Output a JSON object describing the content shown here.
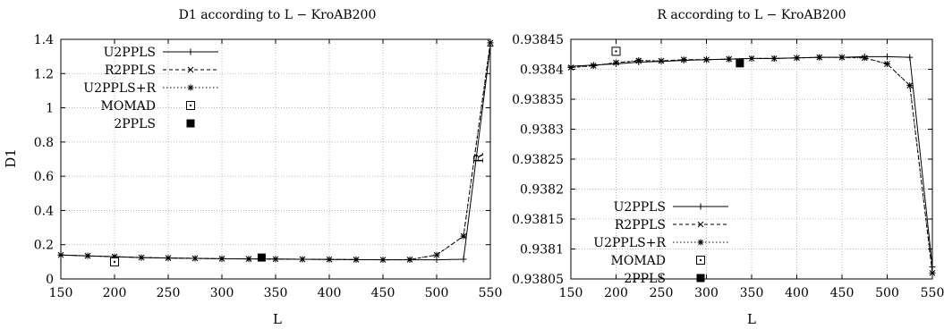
{
  "chart_data": [
    {
      "type": "line",
      "title": "D1 according to L − KroAB200",
      "xlabel": "L",
      "ylabel": "D1",
      "xlim": [
        150,
        550
      ],
      "ylim": [
        0,
        1.4
      ],
      "xticks": [
        "150",
        "200",
        "250",
        "300",
        "350",
        "400",
        "450",
        "500",
        "550"
      ],
      "yticks": [
        "0",
        "0.2",
        "0.4",
        "0.6",
        "0.8",
        "1",
        "1.2",
        "1.4"
      ],
      "grid": true,
      "legend_position": "top-left",
      "series": [
        {
          "name": "U2PPLS",
          "style": "solid-plus",
          "x": [
            150,
            175,
            200,
            225,
            250,
            275,
            300,
            325,
            350,
            375,
            400,
            425,
            450,
            475,
            500,
            525,
            550
          ],
          "y": [
            0.14,
            0.135,
            0.13,
            0.125,
            0.122,
            0.12,
            0.118,
            0.117,
            0.116,
            0.115,
            0.114,
            0.113,
            0.112,
            0.112,
            0.112,
            0.115,
            1.36
          ]
        },
        {
          "name": "R2PPLS",
          "style": "dashed-x",
          "x": [
            150,
            175,
            200,
            225,
            250,
            275,
            300,
            325,
            350,
            375,
            400,
            425,
            450,
            475,
            500,
            525,
            550
          ],
          "y": [
            0.14,
            0.135,
            0.13,
            0.125,
            0.122,
            0.12,
            0.118,
            0.117,
            0.116,
            0.115,
            0.114,
            0.113,
            0.112,
            0.113,
            0.14,
            0.25,
            1.38
          ]
        },
        {
          "name": "U2PPLS+R",
          "style": "dotted-star",
          "x": [
            150,
            175,
            200,
            225,
            250,
            275,
            300,
            325,
            350,
            375,
            400,
            425,
            450,
            475,
            500,
            525,
            550
          ],
          "y": [
            0.14,
            0.135,
            0.13,
            0.125,
            0.122,
            0.12,
            0.118,
            0.117,
            0.116,
            0.115,
            0.114,
            0.113,
            0.112,
            0.113,
            0.14,
            0.25,
            1.38
          ]
        },
        {
          "name": "MOMAD",
          "style": "open-square",
          "x": [
            200
          ],
          "y": [
            0.1
          ]
        },
        {
          "name": "2PPLS",
          "style": "filled-square",
          "x": [
            337
          ],
          "y": [
            0.125
          ]
        }
      ]
    },
    {
      "type": "line",
      "title": "R according to L − KroAB200",
      "xlabel": "L",
      "ylabel": "R",
      "xlim": [
        150,
        550
      ],
      "ylim": [
        0.93805,
        0.93845
      ],
      "xticks": [
        "150",
        "200",
        "250",
        "300",
        "350",
        "400",
        "450",
        "500",
        "550"
      ],
      "yticks": [
        "0.93805",
        "0.9381",
        "0.93815",
        "0.9382",
        "0.93825",
        "0.9383",
        "0.93835",
        "0.9384",
        "0.93845"
      ],
      "grid": true,
      "legend_position": "bottom-left",
      "series": [
        {
          "name": "U2PPLS",
          "style": "solid-plus",
          "x": [
            150,
            175,
            200,
            225,
            250,
            275,
            300,
            325,
            350,
            375,
            400,
            425,
            450,
            475,
            500,
            525,
            550
          ],
          "y": [
            0.938405,
            0.938407,
            0.938409,
            0.938412,
            0.938413,
            0.938415,
            0.938416,
            0.938417,
            0.938418,
            0.938418,
            0.938419,
            0.93842,
            0.93842,
            0.938421,
            0.938421,
            0.93842,
            0.93807
          ]
        },
        {
          "name": "R2PPLS",
          "style": "dashed-x",
          "x": [
            150,
            175,
            200,
            225,
            250,
            275,
            300,
            325,
            350,
            375,
            400,
            425,
            450,
            475,
            500,
            525,
            550
          ],
          "y": [
            0.938403,
            0.938406,
            0.938411,
            0.938414,
            0.938414,
            0.938416,
            0.938416,
            0.938417,
            0.938418,
            0.938418,
            0.938419,
            0.93842,
            0.93842,
            0.938419,
            0.938409,
            0.938373,
            0.93806
          ]
        },
        {
          "name": "U2PPLS+R",
          "style": "dotted-star",
          "x": [
            150,
            175,
            200,
            225,
            250,
            275,
            300,
            325,
            350,
            375,
            400,
            425,
            450,
            475,
            500,
            525,
            550
          ],
          "y": [
            0.938403,
            0.938406,
            0.938411,
            0.938415,
            0.938414,
            0.938416,
            0.938416,
            0.938417,
            0.938418,
            0.938418,
            0.938419,
            0.93842,
            0.93842,
            0.938419,
            0.938409,
            0.938373,
            0.93806
          ]
        },
        {
          "name": "MOMAD",
          "style": "open-square",
          "x": [
            200
          ],
          "y": [
            0.93843
          ]
        },
        {
          "name": "2PPLS",
          "style": "filled-square",
          "x": [
            337
          ],
          "y": [
            0.93841
          ]
        }
      ]
    }
  ]
}
